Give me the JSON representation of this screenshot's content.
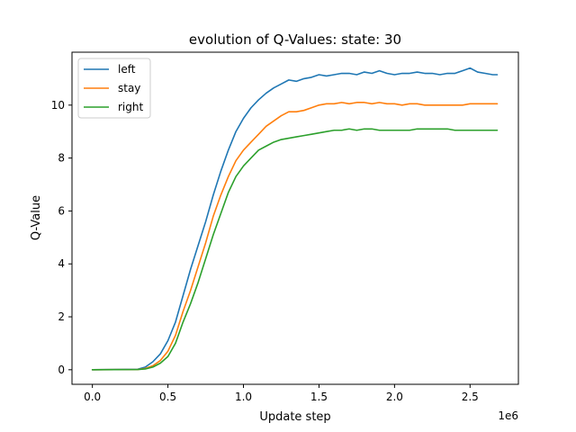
{
  "chart_data": {
    "type": "line",
    "title": "evolution of Q-Values: state: 30",
    "xlabel": "Update step",
    "ylabel": "Q-Value",
    "x_offset_label": "1e6",
    "xlim": [
      -0.135,
      2.82
    ],
    "ylim": [
      -0.55,
      12.0
    ],
    "xticks": [
      0.0,
      0.5,
      1.0,
      1.5,
      2.0,
      2.5
    ],
    "xtick_labels": [
      "0.0",
      "0.5",
      "1.0",
      "1.5",
      "2.0",
      "2.5"
    ],
    "yticks": [
      0,
      2,
      4,
      6,
      8,
      10
    ],
    "ytick_labels": [
      "0",
      "2",
      "4",
      "6",
      "8",
      "10"
    ],
    "grid": false,
    "legend_position": "top-left",
    "series": [
      {
        "name": "left",
        "color": "#1f77b4",
        "x": [
          0.0,
          0.3,
          0.35,
          0.4,
          0.45,
          0.5,
          0.55,
          0.6,
          0.65,
          0.7,
          0.75,
          0.8,
          0.85,
          0.9,
          0.95,
          1.0,
          1.05,
          1.1,
          1.15,
          1.2,
          1.25,
          1.3,
          1.35,
          1.4,
          1.45,
          1.5,
          1.55,
          1.6,
          1.65,
          1.7,
          1.75,
          1.8,
          1.85,
          1.9,
          1.95,
          2.0,
          2.05,
          2.1,
          2.15,
          2.2,
          2.25,
          2.3,
          2.35,
          2.4,
          2.45,
          2.5,
          2.55,
          2.6,
          2.65,
          2.68
        ],
        "y": [
          0.0,
          0.02,
          0.1,
          0.3,
          0.6,
          1.1,
          1.8,
          2.8,
          3.8,
          4.7,
          5.6,
          6.6,
          7.5,
          8.3,
          9.0,
          9.5,
          9.9,
          10.2,
          10.45,
          10.65,
          10.8,
          10.95,
          10.9,
          11.0,
          11.05,
          11.15,
          11.1,
          11.15,
          11.2,
          11.2,
          11.15,
          11.25,
          11.2,
          11.3,
          11.2,
          11.15,
          11.2,
          11.2,
          11.25,
          11.2,
          11.2,
          11.15,
          11.2,
          11.2,
          11.3,
          11.4,
          11.25,
          11.2,
          11.15,
          11.15
        ]
      },
      {
        "name": "stay",
        "color": "#ff7f0e",
        "x": [
          0.0,
          0.3,
          0.35,
          0.4,
          0.45,
          0.5,
          0.55,
          0.6,
          0.65,
          0.7,
          0.75,
          0.8,
          0.85,
          0.9,
          0.95,
          1.0,
          1.05,
          1.1,
          1.15,
          1.2,
          1.25,
          1.3,
          1.35,
          1.4,
          1.45,
          1.5,
          1.55,
          1.6,
          1.65,
          1.7,
          1.75,
          1.8,
          1.85,
          1.9,
          1.95,
          2.0,
          2.05,
          2.1,
          2.15,
          2.2,
          2.25,
          2.3,
          2.35,
          2.4,
          2.45,
          2.5,
          2.55,
          2.6,
          2.65,
          2.68
        ],
        "y": [
          0.0,
          0.01,
          0.05,
          0.15,
          0.35,
          0.7,
          1.3,
          2.2,
          3.0,
          3.9,
          4.8,
          5.8,
          6.6,
          7.3,
          7.9,
          8.3,
          8.6,
          8.9,
          9.2,
          9.4,
          9.6,
          9.75,
          9.75,
          9.8,
          9.9,
          10.0,
          10.05,
          10.05,
          10.1,
          10.05,
          10.1,
          10.1,
          10.05,
          10.1,
          10.05,
          10.05,
          10.0,
          10.05,
          10.05,
          10.0,
          10.0,
          10.0,
          10.0,
          10.0,
          10.0,
          10.05,
          10.05,
          10.05,
          10.05,
          10.05
        ]
      },
      {
        "name": "right",
        "color": "#2ca02c",
        "x": [
          0.0,
          0.3,
          0.35,
          0.4,
          0.45,
          0.5,
          0.55,
          0.6,
          0.65,
          0.7,
          0.75,
          0.8,
          0.85,
          0.9,
          0.95,
          1.0,
          1.05,
          1.1,
          1.15,
          1.2,
          1.25,
          1.3,
          1.35,
          1.4,
          1.45,
          1.5,
          1.55,
          1.6,
          1.65,
          1.7,
          1.75,
          1.8,
          1.85,
          1.9,
          1.95,
          2.0,
          2.05,
          2.1,
          2.15,
          2.2,
          2.25,
          2.3,
          2.35,
          2.4,
          2.45,
          2.5,
          2.55,
          2.6,
          2.65,
          2.68
        ],
        "y": [
          0.0,
          0.01,
          0.03,
          0.1,
          0.25,
          0.5,
          1.0,
          1.8,
          2.5,
          3.3,
          4.2,
          5.1,
          5.9,
          6.7,
          7.3,
          7.7,
          8.0,
          8.3,
          8.45,
          8.6,
          8.7,
          8.75,
          8.8,
          8.85,
          8.9,
          8.95,
          9.0,
          9.05,
          9.05,
          9.1,
          9.05,
          9.1,
          9.1,
          9.05,
          9.05,
          9.05,
          9.05,
          9.05,
          9.1,
          9.1,
          9.1,
          9.1,
          9.1,
          9.05,
          9.05,
          9.05,
          9.05,
          9.05,
          9.05,
          9.05
        ]
      }
    ]
  }
}
